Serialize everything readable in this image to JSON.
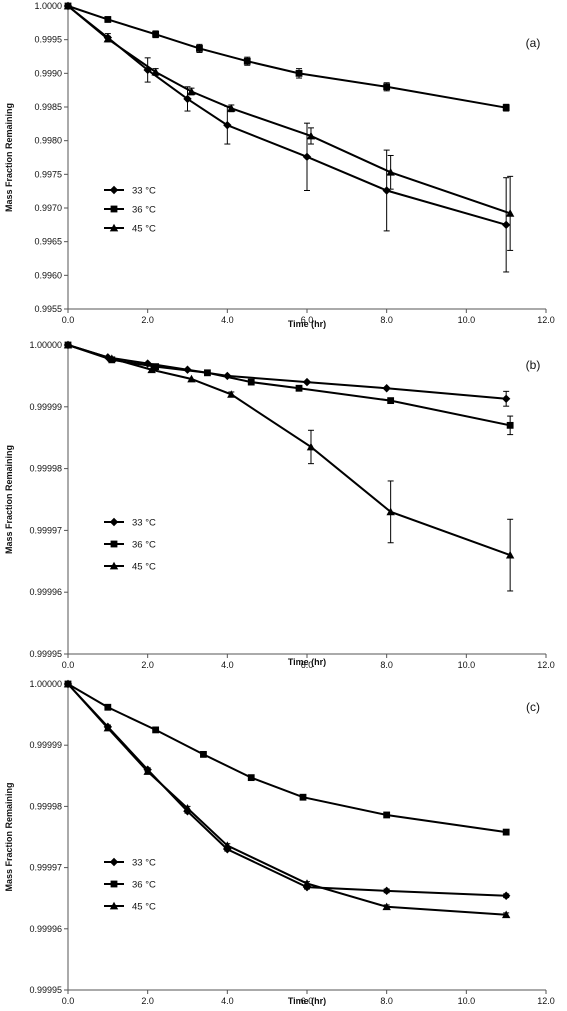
{
  "chart_data": [
    {
      "type": "line",
      "panel_label": "(a)",
      "xlabel": "Time (hr)",
      "ylabel": "Mass Fraction Remaining",
      "xlim": [
        0,
        12
      ],
      "ylim": [
        0.9955,
        1.0
      ],
      "x_ticks": [
        0,
        2,
        4,
        6,
        8,
        10,
        12
      ],
      "x_tick_labels": [
        "0.0",
        "2.0",
        "4.0",
        "6.0",
        "8.0",
        "10.0",
        "12.0"
      ],
      "y_ticks": [
        0.9955,
        0.996,
        0.9965,
        0.997,
        0.9975,
        0.998,
        0.9985,
        0.999,
        0.9995,
        1.0
      ],
      "y_tick_labels": [
        "0.9955",
        "0.9960",
        "0.9965",
        "0.9970",
        "0.9975",
        "0.9980",
        "0.9985",
        "0.9990",
        "0.9995",
        "1.0000"
      ],
      "grid": false,
      "legend_position": "lower-left",
      "series": [
        {
          "name": "33 °C",
          "marker": "diamond",
          "x": [
            0,
            1,
            2,
            3,
            4,
            6,
            8,
            11
          ],
          "y": [
            1.0,
            0.99953,
            0.99905,
            0.99862,
            0.99823,
            0.99776,
            0.99726,
            0.99675
          ],
          "err": [
            0,
            6e-05,
            0.00018,
            0.00018,
            0.00028,
            0.0005,
            0.0006,
            0.0007
          ]
        },
        {
          "name": "36 °C",
          "marker": "square",
          "x": [
            0,
            1,
            2.2,
            3.3,
            4.5,
            5.8,
            8,
            11
          ],
          "y": [
            1.0,
            0.9998,
            0.99958,
            0.99937,
            0.99918,
            0.999,
            0.9988,
            0.99849
          ],
          "err": [
            0,
            3e-05,
            5e-05,
            6e-05,
            6e-05,
            7e-05,
            6e-05,
            5e-05
          ]
        },
        {
          "name": "45 °C",
          "marker": "triangle",
          "x": [
            0,
            1,
            2.2,
            3.1,
            4.1,
            6.1,
            8.1,
            11.1
          ],
          "y": [
            1.0,
            0.99951,
            0.99902,
            0.99873,
            0.99848,
            0.99807,
            0.99753,
            0.99692
          ],
          "err": [
            0,
            4e-05,
            5e-05,
            5e-05,
            5e-05,
            0.00012,
            0.00025,
            0.00055
          ]
        }
      ]
    },
    {
      "type": "line",
      "panel_label": "(b)",
      "xlabel": "Time (hr)",
      "ylabel": "Mass Fraction Remaining",
      "xlim": [
        0,
        12
      ],
      "ylim": [
        0.99995,
        1.0
      ],
      "x_ticks": [
        0,
        2,
        4,
        6,
        8,
        10,
        12
      ],
      "x_tick_labels": [
        "0.0",
        "2.0",
        "4.0",
        "6.0",
        "8.0",
        "10.0",
        "12.0"
      ],
      "y_ticks": [
        0.99995,
        0.99996,
        0.99997,
        0.99998,
        0.99999,
        1.0
      ],
      "y_tick_labels": [
        "0.99995",
        "0.99996",
        "0.99997",
        "0.99998",
        "0.99999",
        "1.00000"
      ],
      "grid": false,
      "legend_position": "lower-left",
      "series": [
        {
          "name": "33 °C",
          "marker": "diamond",
          "x": [
            0,
            1,
            2,
            3,
            4,
            6,
            8,
            11
          ],
          "y": [
            1.0,
            0.999998,
            0.999997,
            0.999996,
            0.999995,
            0.999994,
            0.999993,
            0.9999913
          ],
          "err": [
            0,
            0,
            0,
            0,
            0,
            0,
            0,
            1.2e-06
          ]
        },
        {
          "name": "36 °C",
          "marker": "square",
          "x": [
            0,
            1.1,
            2.2,
            3.5,
            4.6,
            5.8,
            8.1,
            11.1
          ],
          "y": [
            1.0,
            0.9999976,
            0.9999965,
            0.9999955,
            0.999994,
            0.999993,
            0.999991,
            0.999987
          ],
          "err": [
            0,
            0,
            0,
            0,
            0,
            0,
            0,
            1.5e-06
          ]
        },
        {
          "name": "45 °C",
          "marker": "triangle",
          "x": [
            0,
            1.1,
            2.1,
            3.1,
            4.1,
            6.1,
            8.1,
            11.1
          ],
          "y": [
            1.0,
            0.9999978,
            0.999996,
            0.9999945,
            0.999992,
            0.9999835,
            0.999973,
            0.999966
          ],
          "err": [
            0,
            0,
            0,
            0,
            4e-07,
            2.7e-06,
            5e-06,
            5.8e-06
          ]
        }
      ]
    },
    {
      "type": "line",
      "panel_label": "(c)",
      "xlabel": "Time (hr)",
      "ylabel": "Mass Fraction Remaining",
      "xlim": [
        0,
        12
      ],
      "ylim": [
        0.99995,
        1.0
      ],
      "x_ticks": [
        0,
        2,
        4,
        6,
        8,
        10,
        12
      ],
      "x_tick_labels": [
        "0.0",
        "2.0",
        "4.0",
        "6.0",
        "8.0",
        "10.0",
        "12.0"
      ],
      "y_ticks": [
        0.99995,
        0.99996,
        0.99997,
        0.99998,
        0.99999,
        1.0
      ],
      "y_tick_labels": [
        "0.99995",
        "0.99996",
        "0.99997",
        "0.99998",
        "0.99999",
        "1.00000"
      ],
      "grid": false,
      "legend_position": "lower-left",
      "series": [
        {
          "name": "33 °C",
          "marker": "diamond",
          "x": [
            0,
            1,
            2,
            3,
            4,
            6,
            8,
            11
          ],
          "y": [
            1.0,
            0.999993,
            0.999986,
            0.9999792,
            0.999973,
            0.9999668,
            0.9999662,
            0.9999654
          ],
          "err": [
            0,
            3e-07,
            3e-07,
            3e-07,
            3e-07,
            3e-07,
            3e-07,
            3e-07
          ]
        },
        {
          "name": "36 °C",
          "marker": "square",
          "x": [
            0,
            1,
            2.2,
            3.4,
            4.6,
            5.9,
            8,
            11
          ],
          "y": [
            1.0,
            0.9999962,
            0.9999925,
            0.9999885,
            0.9999847,
            0.9999815,
            0.9999786,
            0.9999758
          ],
          "err": [
            0,
            0,
            0,
            0,
            0,
            0,
            0,
            0
          ]
        },
        {
          "name": "45 °C",
          "marker": "triangle",
          "x": [
            0,
            1,
            2,
            3,
            4,
            6,
            8,
            11
          ],
          "y": [
            1.0,
            0.9999928,
            0.9999857,
            0.9999797,
            0.9999736,
            0.9999674,
            0.9999636,
            0.9999623
          ],
          "err": [
            0,
            3e-07,
            3e-07,
            3e-07,
            3e-07,
            3e-07,
            3e-07,
            3e-07
          ]
        }
      ]
    }
  ]
}
